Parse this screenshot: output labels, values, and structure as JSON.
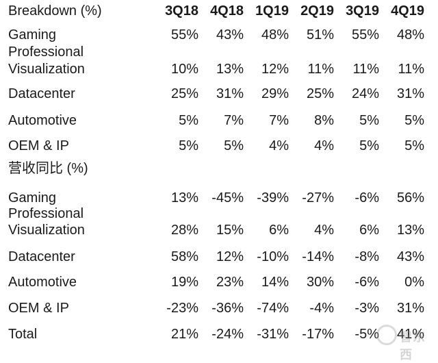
{
  "headers": [
    "3Q18",
    "4Q18",
    "1Q19",
    "2Q19",
    "3Q19",
    "4Q19"
  ],
  "section1_title": "Breakdown (%)",
  "section1_rows": [
    {
      "label1": "Gaming",
      "label2": "",
      "values": [
        "55%",
        "43%",
        "48%",
        "51%",
        "55%",
        "48%"
      ]
    },
    {
      "label1": "Professional",
      "label2": "Visualization",
      "values": [
        "10%",
        "13%",
        "12%",
        "11%",
        "11%",
        "11%"
      ]
    },
    {
      "label1": "Datacenter",
      "label2": "",
      "values": [
        "25%",
        "31%",
        "29%",
        "25%",
        "24%",
        "31%"
      ]
    },
    {
      "label1": "Automotive",
      "label2": "",
      "values": [
        "5%",
        "7%",
        "7%",
        "8%",
        "5%",
        "5%"
      ]
    },
    {
      "label1": "OEM & IP",
      "label2": "",
      "values": [
        "5%",
        "5%",
        "4%",
        "4%",
        "5%",
        "5%"
      ]
    }
  ],
  "section2_title": "营收同比 (%)",
  "section2_rows": [
    {
      "label1": "Gaming",
      "label2": "",
      "values": [
        "13%",
        "-45%",
        "-39%",
        "-27%",
        "-6%",
        "56%"
      ]
    },
    {
      "label1": "Professional",
      "label2": "Visualization",
      "values": [
        "28%",
        "15%",
        "6%",
        "4%",
        "6%",
        "13%"
      ]
    },
    {
      "label1": "Datacenter",
      "label2": "",
      "values": [
        "58%",
        "12%",
        "-10%",
        "-14%",
        "-8%",
        "43%"
      ]
    },
    {
      "label1": "Automotive",
      "label2": "",
      "values": [
        "19%",
        "23%",
        "14%",
        "30%",
        "-6%",
        "0%"
      ]
    },
    {
      "label1": "OEM & IP",
      "label2": "",
      "values": [
        "-23%",
        "-36%",
        "-74%",
        "-4%",
        "-3%",
        "31%"
      ]
    },
    {
      "label1": "Total",
      "label2": "",
      "values": [
        "21%",
        "-24%",
        "-31%",
        "-17%",
        "-5%",
        "41%"
      ]
    }
  ],
  "watermark_text": "智东西"
}
